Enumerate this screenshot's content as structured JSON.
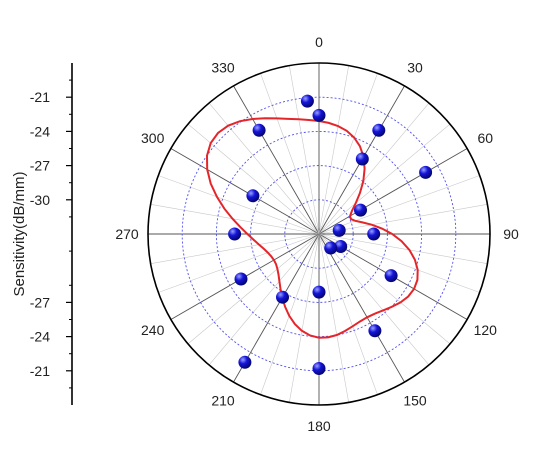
{
  "chart_data": {
    "type": "scatter",
    "subtype": "polar",
    "ylabel": "Sensitivity(dB/mm)",
    "angle_ticks": [
      "0",
      "30",
      "60",
      "90",
      "120",
      "150",
      "180",
      "210",
      "240",
      "270",
      "300",
      "330"
    ],
    "radial_tick_labels_upper": [
      "-21",
      "-24",
      "-27",
      "-30"
    ],
    "radial_tick_labels_lower": [
      "-27",
      "-24",
      "-21"
    ],
    "r_range": [
      -33,
      -18
    ],
    "radial_grid_values": [
      -30,
      -27,
      -24,
      -21
    ],
    "angle_gridlines_deg": 10,
    "grid": true,
    "points": [
      {
        "angle": 0,
        "value": -22.6
      },
      {
        "angle": 30,
        "value": -25.4
      },
      {
        "angle": 60,
        "value": -28.8
      },
      {
        "angle": 80,
        "value": -31.2
      },
      {
        "angle": 120,
        "value": -30.8
      },
      {
        "angle": 140,
        "value": -31.4
      },
      {
        "angle": 180,
        "value": -27.9
      },
      {
        "angle": 210,
        "value": -26.6
      },
      {
        "angle": 240,
        "value": -25.1
      },
      {
        "angle": 270,
        "value": -25.6
      },
      {
        "angle": 300,
        "value": -26.3
      },
      {
        "angle": 330,
        "value": -22.5
      },
      {
        "angle": 355,
        "value": -21.3
      },
      {
        "angle": 30,
        "value": -22.5
      },
      {
        "angle": 60,
        "value": -22.2
      },
      {
        "angle": 90,
        "value": -28.2
      },
      {
        "angle": 120,
        "value": -25.7
      },
      {
        "angle": 150,
        "value": -23.2
      },
      {
        "angle": 180,
        "value": -21.2
      },
      {
        "angle": 210,
        "value": -20.0
      }
    ],
    "colors": {
      "marker": "#1414d9",
      "curve": "#e4262a",
      "angular_grid": "#555555",
      "radial_grid": "#5050f0",
      "axis": "#000000"
    }
  }
}
